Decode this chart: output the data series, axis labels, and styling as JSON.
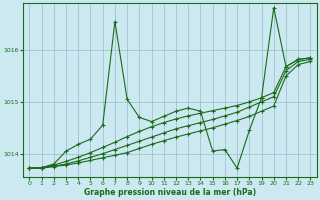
{
  "background_color": "#cce8f0",
  "line_color": "#1a6b1a",
  "grid_color": "#99bbcc",
  "xlabel": "Graphe pression niveau de la mer (hPa)",
  "ylim": [
    1013.55,
    1016.9
  ],
  "xlim": [
    -0.5,
    23.5
  ],
  "yticks": [
    1014,
    1015,
    1016
  ],
  "xticks": [
    0,
    1,
    2,
    3,
    4,
    5,
    6,
    7,
    8,
    9,
    10,
    11,
    12,
    13,
    14,
    15,
    16,
    17,
    18,
    19,
    20,
    21,
    22,
    23
  ],
  "series": [
    [
      1013.72,
      1013.72,
      1013.75,
      1013.78,
      1013.82,
      1013.87,
      1013.92,
      1013.97,
      1014.02,
      1014.1,
      1014.18,
      1014.25,
      1014.32,
      1014.38,
      1014.44,
      1014.5,
      1014.57,
      1014.64,
      1014.72,
      1014.82,
      1014.92,
      1015.5,
      1015.72,
      1015.78
    ],
    [
      1013.72,
      1013.72,
      1013.76,
      1013.8,
      1013.86,
      1013.93,
      1014.0,
      1014.08,
      1014.16,
      1014.24,
      1014.32,
      1014.4,
      1014.48,
      1014.54,
      1014.6,
      1014.66,
      1014.73,
      1014.8,
      1014.9,
      1015.0,
      1015.1,
      1015.6,
      1015.78,
      1015.82
    ],
    [
      1013.72,
      1013.73,
      1013.78,
      1013.85,
      1013.93,
      1014.02,
      1014.12,
      1014.22,
      1014.33,
      1014.43,
      1014.52,
      1014.6,
      1014.67,
      1014.73,
      1014.78,
      1014.83,
      1014.88,
      1014.93,
      1015.0,
      1015.08,
      1015.18,
      1015.68,
      1015.82,
      1015.85
    ],
    [
      1013.72,
      1013.73,
      1013.8,
      1014.05,
      1014.18,
      1014.28,
      1014.55,
      1016.55,
      1015.05,
      1014.7,
      1014.62,
      1014.72,
      1014.82,
      1014.88,
      1014.82,
      1014.05,
      1014.08,
      1013.72,
      1014.45,
      1015.08,
      1016.82,
      1015.68,
      1015.82,
      1015.85
    ]
  ]
}
